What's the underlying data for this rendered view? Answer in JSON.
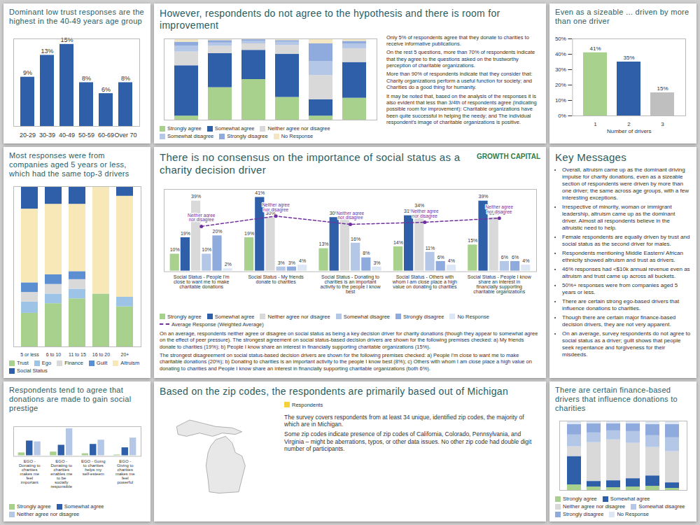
{
  "chart_data": [
    {
      "type": "bar",
      "title": "Dominant low trust responses are the highest in the 40-49 years age group",
      "categories": [
        "20-29",
        "30-39",
        "40-49",
        "50-59",
        "60-69",
        "Over 70"
      ],
      "values": [
        9,
        13,
        15,
        8,
        6,
        8
      ],
      "value_labels": [
        "9%",
        "13%",
        "15%",
        "8%",
        "6%",
        "8%"
      ],
      "color": "#2e5fa8",
      "ylim": [
        0,
        16
      ],
      "tick_labels": "x",
      "data_labels": true
    },
    {
      "type": "bar",
      "stacked": true,
      "title": "However, respondents do not agree to the hypothesis and there is room for improvement",
      "categories": [
        null,
        null,
        null,
        null,
        null,
        null
      ],
      "series": [
        {
          "name": "Strongly agree",
          "color": "#a9d18e",
          "values": [
            5,
            40,
            50,
            28,
            5,
            27
          ]
        },
        {
          "name": "Somewhat agree",
          "color": "#2e5fa8",
          "values": [
            62,
            42,
            36,
            53,
            20,
            44
          ]
        },
        {
          "name": "Neither agree nor disagree",
          "color": "#d9d9d9",
          "values": [
            17,
            9,
            8,
            11,
            30,
            17
          ]
        },
        {
          "name": "Somewhat disagree",
          "color": "#b4c7e7",
          "values": [
            7,
            4,
            3,
            4,
            17,
            6
          ]
        },
        {
          "name": "Strongly disagree",
          "color": "#8faadc",
          "values": [
            5,
            3,
            2,
            2,
            22,
            3
          ]
        },
        {
          "name": "No Response",
          "color": "#f2e6c4",
          "values": [
            4,
            2,
            1,
            2,
            6,
            3
          ]
        }
      ],
      "ylim": [
        0,
        100
      ],
      "tick_labels": false,
      "legend": "bottom",
      "notes": [
        "Only 5% of respondents agree that they donate to charities to receive informative publications.",
        "On the rest 5 questions, more than 70% of respondents indicate that they agree to the questions asked on the trustworthy perception of charitable organizations.",
        "More than 90% of respondents indicate that they consider that: Charity organizations perform a useful function for society; and Charities do a good thing for humanity.",
        "It may be noted that, based on the analysis of the responses it is also evident that less than 3/4th of respondents agree (indicating possible room for improvement): Charitable organizations have been quite successful in helping the needy; and The individual respondent's image of charitable organizations is positive."
      ]
    },
    {
      "type": "bar",
      "title": "Even as a sizeable ... driven by more than one driver",
      "categories": [
        "1",
        "2",
        "3"
      ],
      "values": [
        41,
        35,
        15
      ],
      "value_labels": [
        "41%",
        "35%",
        "15%"
      ],
      "colors": [
        "#a9d18e",
        "#2e5fa8",
        "#bfbfbf"
      ],
      "xlabel": "Number of drivers",
      "ylim": [
        0,
        50
      ],
      "yticks": [
        {
          "value": 0,
          "label": "0%"
        },
        {
          "value": 10,
          "label": "10%"
        },
        {
          "value": 20,
          "label": "20%"
        },
        {
          "value": 30,
          "label": "30%"
        },
        {
          "value": 40,
          "label": "40%"
        },
        {
          "value": 50,
          "label": "50%"
        }
      ],
      "data_labels": true
    },
    {
      "type": "bar",
      "stacked": true,
      "title": "Most responses were from companies aged 5 years or less, which had the same top-3 drivers",
      "categories": [
        "5 or less",
        "6 to 10",
        "11 to 15",
        "16 to 20",
        "20+"
      ],
      "series": [
        {
          "name": "Trust",
          "color": "#a9d18e",
          "values": [
            21,
            27,
            30,
            33,
            25
          ]
        },
        {
          "name": "Ego",
          "color": "#9dc3e6",
          "values": [
            7,
            6,
            6,
            0,
            6
          ]
        },
        {
          "name": "Finance",
          "color": "#d9d9d9",
          "values": [
            6,
            6,
            6,
            0,
            0
          ]
        },
        {
          "name": "Guilt",
          "color": "#5b8fd1",
          "values": [
            6,
            6,
            5,
            0,
            0
          ]
        },
        {
          "name": "Altruism",
          "color": "#f8e8b8",
          "values": [
            46,
            44,
            42,
            67,
            63
          ]
        },
        {
          "name": "Social Status",
          "color": "#2e5fa8",
          "values": [
            14,
            11,
            11,
            0,
            6
          ]
        }
      ],
      "ylim": [
        0,
        100
      ],
      "tick_labels": "x",
      "legend": "bottom"
    },
    {
      "type": "bar",
      "title": "There is no consensus on the importance of social status as a charity decision driver",
      "categories": [
        "Social Status - People I'm close to want me to make charitable donations",
        "Social Status - My friends donate to charities",
        "Social Status - Donating to charities is an important activity to the people I know best",
        "Social Status - Others with whom I am close place a high value on donating to charities",
        "Social Status - People I know share an interest in financially supporting charitable organizations"
      ],
      "series": [
        {
          "name": "Strongly agree",
          "color": "#a9d18e",
          "values": [
            10,
            19,
            13,
            14,
            15
          ],
          "value_labels": [
            "10%",
            "19%",
            "13%",
            "14%",
            "15%"
          ]
        },
        {
          "name": "Somewhat agree",
          "color": "#2e5fa8",
          "values": [
            19,
            41,
            30,
            31,
            39
          ],
          "value_labels": [
            "19%",
            "41%",
            "30%",
            "31%",
            "39%"
          ]
        },
        {
          "name": "Neither agree nor disagree",
          "color": "#d9d9d9",
          "values": [
            39,
            30,
            30,
            34,
            30
          ],
          "value_labels": [
            "39%",
            "30%",
            "30%",
            "34%",
            "30%"
          ]
        },
        {
          "name": "Somewhat disagree",
          "color": "#b4c7e7",
          "values": [
            10,
            3,
            16,
            11,
            6
          ],
          "value_labels": [
            "10%",
            "3%",
            "16%",
            "11%",
            "6%"
          ]
        },
        {
          "name": "Strongly disagree",
          "color": "#8faadc",
          "values": [
            20,
            3,
            8,
            6,
            6
          ],
          "value_labels": [
            "20%",
            "3%",
            "8%",
            "6%",
            "6%"
          ]
        },
        {
          "name": "No Response",
          "color": "#dde6f4",
          "values": [
            2,
            4,
            3,
            4,
            4
          ],
          "value_labels": [
            "2%",
            "4%",
            "3%",
            "4%",
            "4%"
          ]
        },
        {
          "name": "Average Response (Weighted Average)",
          "type": "line",
          "axis": "y2",
          "color": "#7030a0",
          "line_style": "dashed",
          "marker": "circle",
          "values": [
            3.2,
            3.7,
            3.3,
            3.4,
            3.6
          ],
          "value_labels": [
            "Neither agree nor disagree",
            "Neither agree nor disagree",
            "Neither agree nor disagree",
            "Neither agree nor disagree",
            "Neither agree nor disagree"
          ]
        }
      ],
      "ylim": [
        0,
        45
      ],
      "y2lim": [
        1,
        5
      ],
      "tick_labels": "x",
      "data_labels": true,
      "legend": "bottom",
      "notes": [
        "On an average, respondents neither agree or disagree on social status as being a key decision driver for charity donations (though they appear to somewhat agree on the effect of peer pressure). The strongest agreement on social status-based decision drivers are shown for the following premises checked: a) My friends donate to charities (19%); b) People I know share an interest in financially supporting charitable organizations (15%).",
        "The strongest disagreement on social status-based decision drivers are shown for the following premises checked: a) People I'm close to want me to make charitable donations (20%); b) Donating to charities is an important activity to the people I know best (8%); c) Others with whom I am close place a high value on donating to charities and People I know share an interest in financially supporting charitable organizations (both 6%)."
      ]
    },
    {
      "type": "bar",
      "title": "Respondents tend to agree that donations are made to gain social prestige",
      "categories": [
        "EGO - Donating to charities makes me feel important",
        "EGO - Donating to charities enables me to be socially responsible",
        "EGO - Going to charities helps my self-esteem",
        "EGO - Giving to charities makes me feel powerful"
      ],
      "series": [
        {
          "name": "Strongly agree",
          "color": "#a9d18e",
          "values": [
            10,
            12,
            8,
            5
          ]
        },
        {
          "name": "Somewhat agree",
          "color": "#2e5fa8",
          "values": [
            38,
            28,
            30,
            22
          ]
        },
        {
          "name": "Neither agree nor disagree",
          "color": "#b4c7e7",
          "values": [
            36,
            67,
            40,
            45
          ]
        }
      ],
      "ylim": [
        0,
        70
      ],
      "tick_labels": "x",
      "legend": "bottom"
    },
    {
      "type": "bar",
      "stacked": true,
      "title": "There are certain finance-based drivers that influence donations to charities",
      "categories": [
        null,
        null,
        null,
        null,
        null,
        null
      ],
      "series": [
        {
          "name": "Strongly agree",
          "color": "#a9d18e",
          "values": [
            8,
            5,
            4,
            5,
            6,
            3
          ]
        },
        {
          "name": "Somewhat agree",
          "color": "#2e5fa8",
          "values": [
            41,
            8,
            10,
            12,
            15,
            8
          ]
        },
        {
          "name": "Neither agree nor disagree",
          "color": "#d9d9d9",
          "values": [
            14,
            56,
            59,
            51,
            41,
            45
          ]
        },
        {
          "name": "Somewhat disagree",
          "color": "#b4c7e7",
          "values": [
            17,
            14,
            13,
            17,
            17,
            20
          ]
        },
        {
          "name": "Strongly disagree",
          "color": "#8faadc",
          "values": [
            15,
            13,
            10,
            11,
            16,
            19
          ]
        },
        {
          "name": "No Response",
          "color": "#dde6f4",
          "values": [
            5,
            4,
            4,
            4,
            5,
            5
          ]
        }
      ],
      "ylim": [
        0,
        100
      ],
      "tick_labels": false,
      "legend": "bottom"
    }
  ],
  "logo": "GROWTH CAPITAL",
  "key_messages": {
    "title": "Key Messages",
    "bullets": [
      "Overall, altruism came up as the dominant driving impulse for charity donations, even as a sizeable section of respondents were driven by more than one driver; the same across age groups, with a few interesting exceptions.",
      "Irrespective of minority, woman or immigrant leadership, altruism came up as the dominant driver. Almost all respondents believe in the altruistic need to help.",
      "Female respondents are equally driven by trust and social status as the second driver for males.",
      "Respondents mentioning Middle Eastern/ African ethnicity showed altruism and trust as drivers.",
      "46% responses had <$10k annual revenue even as altruism and trust came up across all buckets.",
      "50%+ responses were from companies aged 5 years or less.",
      "There are certain strong ego-based drivers that influence donations to charities.",
      "Though there are certain major finance-based decision drivers, they are not very apparent.",
      "On an average, survey respondents do not agree to social status as a driver; guilt shows that people seek repentance and forgiveness for their misdeeds."
    ]
  },
  "map_slide": {
    "title": "Based on the zip codes, the respondents are primarily based out of Michigan",
    "legend_title": "Respondents",
    "notes": [
      "The survey covers respondents from at least 34 unique, identified zip codes, the majority of which are in Michigan.",
      "Some zip codes indicate presence of zip codes of California, Colorado, Pennsylvania, and Virginia – might be aberrations, typos, or other data issues. No other zip code had double digit number of participants."
    ]
  }
}
